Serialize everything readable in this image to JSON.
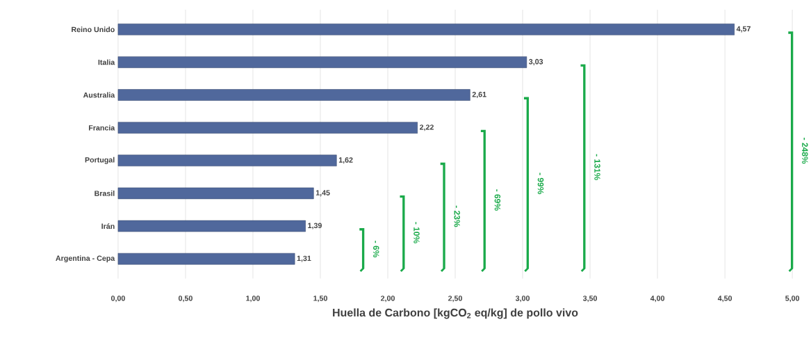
{
  "chart_data": {
    "type": "bar",
    "orientation": "horizontal",
    "xlabel": "Huella de Carbono [kgCO$_{2}$ eq/kg] de pollo vivo",
    "categories": [
      "Reino Unido",
      "Italia",
      "Australia",
      "Francia",
      "Portugal",
      "Brasil",
      "Irán",
      "Argentina - Cepa"
    ],
    "values": [
      4.57,
      3.03,
      2.61,
      2.22,
      1.62,
      1.45,
      1.39,
      1.31
    ],
    "value_labels": [
      "4,57",
      "3,03",
      "2,61",
      "2,22",
      "1,62",
      "1,45",
      "1,39",
      "1,31"
    ],
    "color": "#50689c",
    "xlim": [
      0,
      5
    ],
    "xticks": [
      {
        "value": 0,
        "label": "0,00"
      },
      {
        "value": 0.5,
        "label": "0,50"
      },
      {
        "value": 1,
        "label": "1,00"
      },
      {
        "value": 1.5,
        "label": "1,50"
      },
      {
        "value": 2,
        "label": "2,00"
      },
      {
        "value": 2.5,
        "label": "2,50"
      },
      {
        "value": 3,
        "label": "3,00"
      },
      {
        "value": 3.5,
        "label": "3,50"
      },
      {
        "value": 4,
        "label": "4,00"
      },
      {
        "value": 4.5,
        "label": "4,50"
      },
      {
        "value": 5,
        "label": "5,00"
      }
    ],
    "grid": "x",
    "annotations": [
      "- 6%",
      "- 10%",
      "- 23%",
      "- 69%",
      "- 99%",
      "- 131%",
      "- 248%"
    ]
  }
}
